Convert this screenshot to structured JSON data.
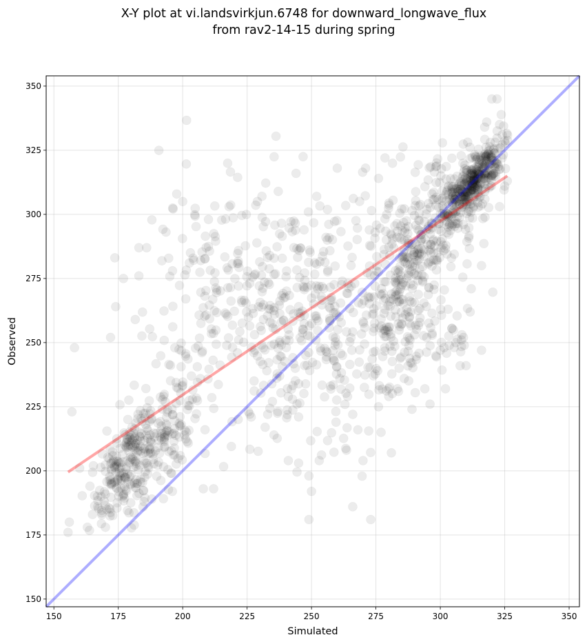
{
  "chart_data": {
    "type": "scatter",
    "title_line1": "X-Y plot at vi.landsvirkjun.6748 for downward_longwave_flux",
    "title_line2": "from rav2-14-15 during spring",
    "xlabel": "Simulated",
    "ylabel": "Observed",
    "xlim": [
      147,
      354
    ],
    "ylim": [
      147,
      354
    ],
    "xticks": [
      150,
      175,
      200,
      225,
      250,
      275,
      300,
      325,
      350
    ],
    "yticks": [
      150,
      175,
      200,
      225,
      250,
      275,
      300,
      325,
      350
    ],
    "grid": true,
    "colors": {
      "points": "#000000",
      "identity_line": "#0000ff",
      "fit_line": "#ff0000"
    },
    "identity_line": {
      "x": [
        147,
        354
      ],
      "y": [
        147,
        354
      ]
    },
    "fit_line": {
      "x": [
        155.5,
        326
      ],
      "y": [
        199.5,
        315
      ]
    },
    "clusters": [
      {
        "cx": 177,
        "cy": 200,
        "sx": 6,
        "sy": 11,
        "rho": 0.6,
        "n": 190
      },
      {
        "cx": 192,
        "cy": 215,
        "sx": 8,
        "sy": 12,
        "rho": 0.5,
        "n": 150
      },
      {
        "cx": 210,
        "cy": 265,
        "sx": 12,
        "sy": 20,
        "rho": 0.1,
        "n": 110
      },
      {
        "cx": 232,
        "cy": 262,
        "sx": 13,
        "sy": 25,
        "rho": 0.1,
        "n": 190
      },
      {
        "cx": 257,
        "cy": 262,
        "sx": 11,
        "sy": 27,
        "rho": 0.1,
        "n": 170
      },
      {
        "cx": 282,
        "cy": 270,
        "sx": 9,
        "sy": 22,
        "rho": 0.3,
        "n": 220
      },
      {
        "cx": 298,
        "cy": 295,
        "sx": 10,
        "sy": 16,
        "rho": 0.7,
        "n": 240
      },
      {
        "cx": 313,
        "cy": 313,
        "sx": 6,
        "sy": 8,
        "rho": 0.8,
        "n": 330
      },
      {
        "cx": 296,
        "cy": 255,
        "sx": 10,
        "sy": 12,
        "rho": 0.2,
        "n": 60
      }
    ],
    "points": [
      [
        155.5,
        176
      ],
      [
        156,
        180
      ],
      [
        157,
        223
      ],
      [
        158,
        248
      ],
      [
        163,
        178
      ],
      [
        165,
        183
      ],
      [
        167,
        186
      ],
      [
        160,
        201
      ],
      [
        164,
        194
      ],
      [
        229,
        305
      ],
      [
        200,
        305
      ],
      [
        218,
        303
      ],
      [
        183,
        287
      ],
      [
        186,
        287
      ],
      [
        183,
        276
      ],
      [
        177,
        275
      ],
      [
        174,
        264
      ],
      [
        172,
        252
      ],
      [
        203,
        285
      ],
      [
        207,
        282
      ],
      [
        210,
        298
      ],
      [
        244,
        316
      ],
      [
        252,
        307
      ],
      [
        260,
        318
      ],
      [
        271,
        318
      ],
      [
        276,
        314
      ],
      [
        266,
        186
      ],
      [
        273,
        181
      ],
      [
        249,
        181
      ],
      [
        250,
        192
      ],
      [
        249,
        198
      ],
      [
        253,
        204
      ],
      [
        245,
        203
      ],
      [
        270,
        204
      ],
      [
        281,
        207
      ],
      [
        294,
        232
      ],
      [
        302,
        232
      ],
      [
        310,
        241
      ],
      [
        316,
        247
      ],
      [
        320,
        345
      ],
      [
        322,
        345
      ],
      [
        323,
        335
      ],
      [
        318,
        336
      ],
      [
        309,
        252
      ],
      [
        306,
        250
      ],
      [
        303,
        263
      ],
      [
        312,
        271
      ],
      [
        316,
        280
      ],
      [
        212,
        193
      ],
      [
        208,
        193
      ],
      [
        196,
        192
      ],
      [
        188,
        189
      ],
      [
        185,
        188
      ],
      [
        170,
        178
      ],
      [
        233,
        222
      ],
      [
        232,
        217
      ],
      [
        241,
        204
      ],
      [
        241,
        229
      ],
      [
        245,
        221
      ],
      [
        228,
        247
      ],
      [
        262,
        245
      ],
      [
        264,
        229
      ],
      [
        266,
        222
      ],
      [
        268,
        216
      ],
      [
        276,
        225
      ],
      [
        277,
        215
      ],
      [
        280,
        229
      ],
      [
        284,
        240
      ],
      [
        289,
        242
      ],
      [
        290,
        253
      ],
      [
        325,
        311
      ],
      [
        326,
        313
      ],
      [
        324,
        322
      ],
      [
        323,
        303
      ],
      [
        300,
        247
      ],
      [
        296,
        226
      ],
      [
        289,
        224
      ],
      [
        286,
        236
      ]
    ]
  }
}
